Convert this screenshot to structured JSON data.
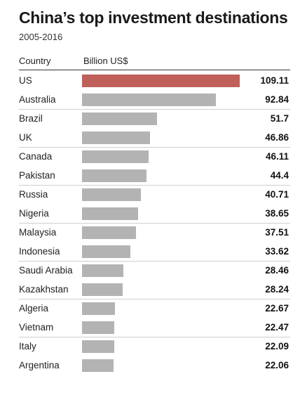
{
  "header": {
    "title": "China’s top investment destinations",
    "subtitle": "2005-2016",
    "col_country": "Country",
    "col_value": "Billion US$"
  },
  "colors": {
    "bar": "#b3b3b3",
    "highlight": "#c0605a"
  },
  "chart_data": {
    "type": "bar",
    "orientation": "horizontal",
    "title": "China’s top investment destinations",
    "subtitle": "2005-2016",
    "xlabel": "Billion US$",
    "ylabel": "Country",
    "highlight": "US",
    "xlim": [
      0,
      109.11
    ],
    "categories": [
      "US",
      "Australia",
      "Brazil",
      "UK",
      "Canada",
      "Pakistan",
      "Russia",
      "Nigeria",
      "Malaysia",
      "Indonesia",
      "Saudi Arabia",
      "Kazakhstan",
      "Algeria",
      "Vietnam",
      "Italy",
      "Argentina"
    ],
    "values": [
      109.11,
      92.84,
      51.7,
      46.86,
      46.11,
      44.4,
      40.71,
      38.65,
      37.51,
      33.62,
      28.46,
      28.24,
      22.67,
      22.47,
      22.09,
      22.06
    ],
    "value_labels": [
      "109.11",
      "92.84",
      "51.7",
      "46.86",
      "46.11",
      "44.4",
      "40.71",
      "38.65",
      "37.51",
      "33.62",
      "28.46",
      "28.24",
      "22.67",
      "22.47",
      "22.09",
      "22.06"
    ]
  }
}
